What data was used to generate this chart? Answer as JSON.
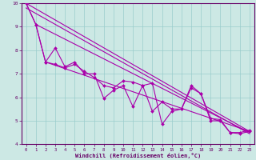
{
  "xlabel": "Windchill (Refroidissement éolien,°C)",
  "bg_color": "#cce8e4",
  "line_color": "#aa00aa",
  "grid_color": "#99cccc",
  "axis_color": "#660066",
  "text_color": "#660066",
  "xlim": [
    -0.5,
    23.5
  ],
  "ylim": [
    4,
    10
  ],
  "xticks": [
    0,
    1,
    2,
    3,
    4,
    5,
    6,
    7,
    8,
    9,
    10,
    11,
    12,
    13,
    14,
    15,
    16,
    17,
    18,
    19,
    20,
    21,
    22,
    23
  ],
  "yticks": [
    4,
    5,
    6,
    7,
    8,
    9,
    10
  ],
  "series1": {
    "x": [
      0,
      1,
      2,
      3,
      4,
      5,
      6,
      7,
      8,
      9,
      10,
      11,
      12,
      13,
      14,
      15,
      16,
      17,
      18,
      19,
      20,
      21,
      22,
      23
    ],
    "y": [
      10.0,
      9.1,
      7.5,
      8.1,
      7.3,
      7.5,
      7.0,
      7.0,
      5.95,
      6.3,
      6.5,
      5.6,
      6.5,
      6.6,
      4.85,
      5.4,
      5.5,
      6.4,
      6.15,
      5.0,
      5.0,
      4.5,
      4.5,
      4.6
    ]
  },
  "series2": {
    "x": [
      0,
      1,
      2,
      3,
      4,
      5,
      6,
      7,
      8,
      9,
      10,
      11,
      12,
      13,
      14,
      15,
      16,
      17,
      18,
      19,
      20,
      21,
      22,
      23
    ],
    "y": [
      10.0,
      9.1,
      7.5,
      7.4,
      7.25,
      7.4,
      7.1,
      6.85,
      6.5,
      6.4,
      6.7,
      6.65,
      6.5,
      5.4,
      5.8,
      5.5,
      5.5,
      6.5,
      6.15,
      5.1,
      5.05,
      4.5,
      4.45,
      4.55
    ]
  },
  "line1": {
    "x": [
      0,
      23
    ],
    "y": [
      10.0,
      4.55
    ]
  },
  "line2": {
    "x": [
      1,
      23
    ],
    "y": [
      9.1,
      4.5
    ]
  },
  "line3": {
    "x": [
      2,
      23
    ],
    "y": [
      7.5,
      4.55
    ]
  },
  "line4": {
    "x": [
      0,
      23
    ],
    "y": [
      9.8,
      4.45
    ]
  }
}
